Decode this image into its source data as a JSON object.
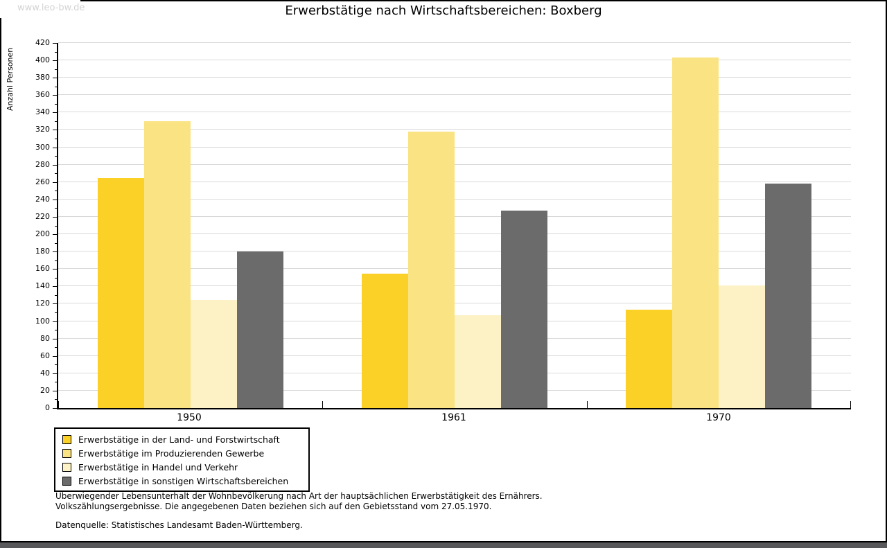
{
  "watermark": "www.leo-bw.de",
  "chart_data": {
    "type": "bar",
    "title": "Erwerbstätige nach Wirtschaftsbereichen: Boxberg",
    "ylabel": "Anzahl Personen",
    "xlabel": "",
    "categories": [
      "1950",
      "1961",
      "1970"
    ],
    "series": [
      {
        "name": "Erwerbstätige in der Land- und Forstwirtschaft",
        "color": "#FBD127",
        "values": [
          265,
          155,
          113
        ]
      },
      {
        "name": "Erwerbstätige im Produzierenden Gewerbe",
        "color": "#FAE382",
        "values": [
          330,
          318,
          403
        ]
      },
      {
        "name": "Erwerbstätige in Handel und Verkehr",
        "color": "#FCF2C6",
        "values": [
          124,
          107,
          141
        ]
      },
      {
        "name": "Erwerbstätige in sonstigen Wirtschaftsbereichen",
        "color": "#6B6B6B",
        "values": [
          180,
          227,
          258
        ]
      }
    ],
    "ylim": [
      0,
      420
    ],
    "ytick_step": 20,
    "minor_tick_step": 10,
    "grid": true,
    "legend_position": "bottom-left"
  },
  "footer": {
    "line1": "Überwiegender Lebensunterhalt der Wohnbevölkerung nach Art der hauptsächlichen Erwerbstätigkeit des Ernährers.",
    "line2": "Volkszählungsergebnisse. Die angegebenen Daten beziehen sich auf den Gebietsstand vom 27.05.1970.",
    "source": "Datenquelle: Statistisches Landesamt Baden-Württemberg."
  },
  "colors": {
    "gridline": "#D9D9D9",
    "axis": "#000000",
    "watermark_text": "#D3D3D3",
    "bottom_strip": "#59595B"
  }
}
